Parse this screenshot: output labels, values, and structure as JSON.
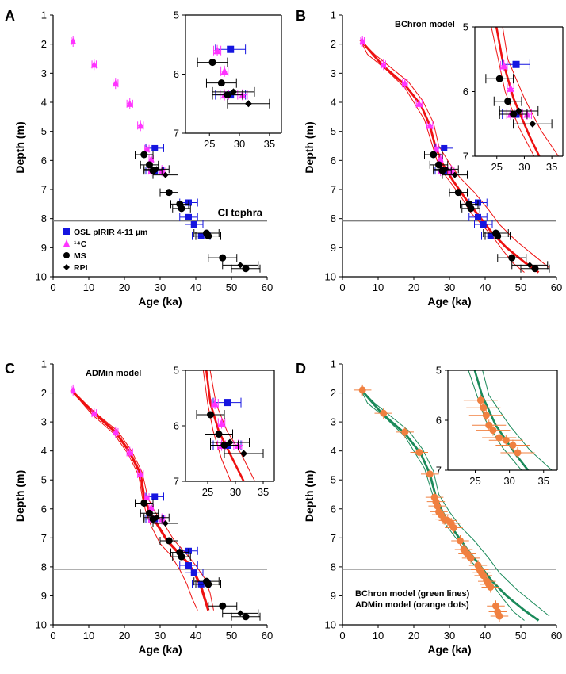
{
  "chart_data": [
    {
      "panel": "A",
      "type": "scatter",
      "xlabel": "Age (ka)",
      "ylabel": "Depth (m)",
      "xlim": [
        0,
        60
      ],
      "ylim": [
        10,
        1
      ],
      "xticks": [
        "0",
        "10",
        "20",
        "30",
        "40",
        "50",
        "60"
      ],
      "yticks": [
        "1",
        "2",
        "3",
        "4",
        "5",
        "6",
        "7",
        "8",
        "9",
        "10"
      ],
      "hline": {
        "y": 8.08,
        "label": "CI tephra"
      },
      "legend": [
        {
          "name": "OSL pIRIR 4-11 µm",
          "marker": "square",
          "color": "#1515e0"
        },
        {
          "name": "¹⁴C",
          "marker": "triangle",
          "color": "#ff33ff"
        },
        {
          "name": "MS",
          "marker": "circle",
          "color": "#000000"
        },
        {
          "name": "RPI",
          "marker": "diamond",
          "color": "#000000"
        }
      ],
      "inset": {
        "xlim": [
          21,
          37
        ],
        "ylim": [
          7,
          5
        ],
        "xticks": [
          "25",
          "30",
          "35"
        ],
        "yticks": [
          "5",
          "6",
          "7"
        ]
      },
      "series": [
        {
          "name": "OSL pIRIR 4-11 µm",
          "points": [
            [
              28.5,
              5.58,
              2.5
            ],
            [
              28.5,
              6.35,
              2.5
            ],
            [
              38,
              7.45,
              2.5
            ],
            [
              38,
              7.95,
              2.5
            ],
            [
              39.5,
              8.2,
              2.5
            ],
            [
              41.5,
              8.6,
              2.5
            ]
          ]
        },
        {
          "name": "¹⁴C",
          "points": [
            [
              5.6,
              1.9,
              0.5
            ],
            [
              11.5,
              2.7,
              0.6
            ],
            [
              17.5,
              3.35,
              0.7
            ],
            [
              21.5,
              4.05,
              0.8
            ],
            [
              24.5,
              4.8,
              0.8
            ],
            [
              26.3,
              5.6,
              0.6
            ],
            [
              27.5,
              5.95,
              0.6
            ],
            [
              27.5,
              6.35,
              0.7
            ],
            [
              30.5,
              6.35,
              0.8
            ]
          ]
        },
        {
          "name": "MS",
          "points": [
            [
              25.5,
              5.8,
              2.5
            ],
            [
              27,
              6.15,
              2.5
            ],
            [
              28,
              6.35,
              2.5
            ],
            [
              32.5,
              7.1,
              2.5
            ],
            [
              35.5,
              7.5,
              2.5
            ],
            [
              36,
              7.65,
              2.5
            ],
            [
              43,
              8.5,
              3.5
            ],
            [
              43.5,
              8.6,
              3.5
            ],
            [
              47.5,
              9.35,
              4
            ],
            [
              54,
              9.72,
              4
            ]
          ]
        },
        {
          "name": "RPI",
          "points": [
            [
              29,
              6.3,
              3.5
            ],
            [
              31.5,
              6.5,
              3.5
            ],
            [
              52.5,
              9.6,
              5
            ]
          ]
        }
      ]
    },
    {
      "panel": "B",
      "type": "line",
      "title": "BChron model",
      "xlabel": "Age (ka)",
      "ylabel": "Depth (m)",
      "xlim": [
        0,
        60
      ],
      "ylim": [
        10,
        1
      ],
      "xticks": [
        "0",
        "10",
        "20",
        "30",
        "40",
        "50",
        "60"
      ],
      "yticks": [
        "1",
        "2",
        "3",
        "4",
        "5",
        "6",
        "7",
        "8",
        "9",
        "10"
      ],
      "hline": {
        "y": 8.08
      },
      "inset": {
        "xlim": [
          21,
          37
        ],
        "ylim": [
          7,
          5
        ],
        "xticks": [
          "25",
          "30",
          "35"
        ],
        "yticks": [
          "5",
          "6",
          "7"
        ]
      },
      "model_lines": {
        "color": "#ee1111",
        "median": [
          [
            5.0,
            1.85
          ],
          [
            11.0,
            2.7
          ],
          [
            17.5,
            3.4
          ],
          [
            22,
            4.1
          ],
          [
            24.5,
            4.8
          ],
          [
            26,
            5.5
          ],
          [
            28,
            6.1
          ],
          [
            31,
            6.7
          ],
          [
            35,
            7.4
          ],
          [
            38.5,
            7.95
          ],
          [
            42,
            8.5
          ],
          [
            46,
            9.0
          ],
          [
            51,
            9.5
          ],
          [
            55,
            9.85
          ]
        ],
        "lower": [
          [
            5.0,
            1.85
          ],
          [
            7,
            2.35
          ],
          [
            12,
            2.85
          ],
          [
            17.5,
            3.5
          ],
          [
            20,
            4.0
          ],
          [
            23,
            4.6
          ],
          [
            25,
            5.4
          ],
          [
            26.5,
            6.0
          ],
          [
            29,
            6.55
          ],
          [
            33,
            7.2
          ],
          [
            36,
            7.8
          ],
          [
            39,
            8.2
          ],
          [
            42,
            8.6
          ],
          [
            45,
            9.1
          ],
          [
            48,
            9.55
          ],
          [
            51,
            9.85
          ]
        ],
        "upper": [
          [
            5.0,
            1.85
          ],
          [
            9,
            2.35
          ],
          [
            14,
            2.85
          ],
          [
            18.5,
            3.3
          ],
          [
            22.5,
            3.95
          ],
          [
            25.5,
            4.7
          ],
          [
            27,
            5.5
          ],
          [
            30,
            6.1
          ],
          [
            33,
            6.6
          ],
          [
            37,
            7.1
          ],
          [
            41,
            7.7
          ],
          [
            44,
            8.2
          ],
          [
            49,
            8.8
          ],
          [
            54,
            9.3
          ],
          [
            58,
            9.7
          ]
        ]
      }
    },
    {
      "panel": "C",
      "type": "line",
      "title": "ADMin model",
      "xlabel": "Age (ka)",
      "ylabel": "Depth (m)",
      "xlim": [
        0,
        60
      ],
      "ylim": [
        10,
        1
      ],
      "xticks": [
        "0",
        "10",
        "20",
        "30",
        "40",
        "50",
        "60"
      ],
      "yticks": [
        "1",
        "2",
        "3",
        "4",
        "5",
        "6",
        "7",
        "8",
        "9",
        "10"
      ],
      "hline": {
        "y": 8.08
      },
      "inset": {
        "xlim": [
          21,
          37
        ],
        "ylim": [
          7,
          5
        ],
        "xticks": [
          "25",
          "30",
          "35"
        ],
        "yticks": [
          "5",
          "6",
          "7"
        ]
      },
      "model_lines": {
        "color": "#ee1111",
        "median": [
          [
            5.0,
            1.9
          ],
          [
            11.5,
            2.7
          ],
          [
            17.5,
            3.35
          ],
          [
            21.5,
            4.05
          ],
          [
            24.5,
            4.8
          ],
          [
            25.5,
            5.6
          ],
          [
            27,
            6.1
          ],
          [
            29,
            6.5
          ],
          [
            32,
            7.1
          ],
          [
            35,
            7.5
          ],
          [
            38,
            7.9
          ],
          [
            40,
            8.3
          ],
          [
            41.5,
            8.7
          ],
          [
            42.5,
            9.1
          ],
          [
            43.5,
            9.5
          ]
        ],
        "lower": [
          [
            5.0,
            1.9
          ],
          [
            11,
            2.75
          ],
          [
            17,
            3.4
          ],
          [
            21,
            4.1
          ],
          [
            24,
            4.85
          ],
          [
            25,
            5.6
          ],
          [
            26,
            6.1
          ],
          [
            27.5,
            6.6
          ],
          [
            30,
            7.2
          ],
          [
            33,
            7.6
          ],
          [
            35.5,
            8.1
          ],
          [
            37.5,
            8.6
          ],
          [
            39,
            9.1
          ],
          [
            40.5,
            9.5
          ]
        ],
        "upper": [
          [
            5.0,
            1.9
          ],
          [
            12,
            2.7
          ],
          [
            18,
            3.3
          ],
          [
            22,
            4.0
          ],
          [
            25,
            4.75
          ],
          [
            26.5,
            5.6
          ],
          [
            28.5,
            6.1
          ],
          [
            31,
            6.5
          ],
          [
            34,
            7.1
          ],
          [
            37,
            7.5
          ],
          [
            40,
            7.95
          ],
          [
            42.5,
            8.4
          ],
          [
            44,
            8.9
          ],
          [
            45,
            9.5
          ]
        ]
      }
    },
    {
      "panel": "D",
      "type": "line",
      "notes": [
        "BChron model (green lines)",
        "ADMin model (orange dots)"
      ],
      "xlabel": "Age (ka)",
      "ylabel": "Depth (m)",
      "xlim": [
        0,
        60
      ],
      "ylim": [
        10,
        1
      ],
      "xticks": [
        "0",
        "10",
        "20",
        "30",
        "40",
        "50",
        "60"
      ],
      "yticks": [
        "1",
        "2",
        "3",
        "4",
        "5",
        "6",
        "7",
        "8",
        "9",
        "10"
      ],
      "hline": {
        "y": 8.08
      },
      "inset": {
        "xlim": [
          21,
          37
        ],
        "ylim": [
          7,
          5
        ],
        "xticks": [
          "25",
          "30",
          "35"
        ],
        "yticks": [
          "5",
          "6",
          "7"
        ]
      },
      "model_lines": {
        "color": "#1a8a5a",
        "median": [
          [
            5.0,
            1.85
          ],
          [
            11.0,
            2.7
          ],
          [
            17.5,
            3.4
          ],
          [
            22,
            4.1
          ],
          [
            24.5,
            4.8
          ],
          [
            26,
            5.5
          ],
          [
            28,
            6.1
          ],
          [
            31,
            6.7
          ],
          [
            35,
            7.4
          ],
          [
            38.5,
            7.95
          ],
          [
            42,
            8.5
          ],
          [
            46,
            9.0
          ],
          [
            51,
            9.5
          ],
          [
            55,
            9.85
          ]
        ],
        "lower": [
          [
            5.0,
            1.85
          ],
          [
            7,
            2.35
          ],
          [
            12,
            2.85
          ],
          [
            17.5,
            3.5
          ],
          [
            20,
            4.0
          ],
          [
            23,
            4.6
          ],
          [
            25,
            5.4
          ],
          [
            26.5,
            6.0
          ],
          [
            29,
            6.55
          ],
          [
            33,
            7.2
          ],
          [
            36,
            7.8
          ],
          [
            39,
            8.2
          ],
          [
            42,
            8.6
          ],
          [
            45,
            9.1
          ],
          [
            48,
            9.55
          ],
          [
            51,
            9.85
          ]
        ],
        "upper": [
          [
            5.0,
            1.85
          ],
          [
            9,
            2.35
          ],
          [
            14,
            2.85
          ],
          [
            18.5,
            3.3
          ],
          [
            22.5,
            3.95
          ],
          [
            25.5,
            4.7
          ],
          [
            27,
            5.5
          ],
          [
            30,
            6.1
          ],
          [
            33,
            6.6
          ],
          [
            37,
            7.1
          ],
          [
            41,
            7.7
          ],
          [
            44,
            8.2
          ],
          [
            49,
            8.8
          ],
          [
            54,
            9.3
          ],
          [
            58,
            9.7
          ]
        ]
      },
      "points": {
        "name": "ADMin model",
        "color": "#f08040",
        "values": [
          [
            5.6,
            1.9
          ],
          [
            11.5,
            2.7
          ],
          [
            17.5,
            3.35
          ],
          [
            21.5,
            4.05
          ],
          [
            24.5,
            4.8
          ],
          [
            25.8,
            5.6
          ],
          [
            26.2,
            5.75
          ],
          [
            26.6,
            5.9
          ],
          [
            27,
            6.1
          ],
          [
            27.6,
            6.2
          ],
          [
            28.5,
            6.35
          ],
          [
            29.5,
            6.4
          ],
          [
            30.5,
            6.5
          ],
          [
            31.2,
            6.65
          ],
          [
            33,
            7.1
          ],
          [
            34,
            7.4
          ],
          [
            35,
            7.55
          ],
          [
            36,
            7.7
          ],
          [
            38,
            7.95
          ],
          [
            38.5,
            8.1
          ],
          [
            39,
            8.2
          ],
          [
            39.5,
            8.3
          ],
          [
            40.5,
            8.5
          ],
          [
            41,
            8.6
          ],
          [
            41.5,
            8.7
          ],
          [
            43,
            9.35
          ],
          [
            43.5,
            9.55
          ],
          [
            44,
            9.7
          ]
        ]
      }
    }
  ]
}
